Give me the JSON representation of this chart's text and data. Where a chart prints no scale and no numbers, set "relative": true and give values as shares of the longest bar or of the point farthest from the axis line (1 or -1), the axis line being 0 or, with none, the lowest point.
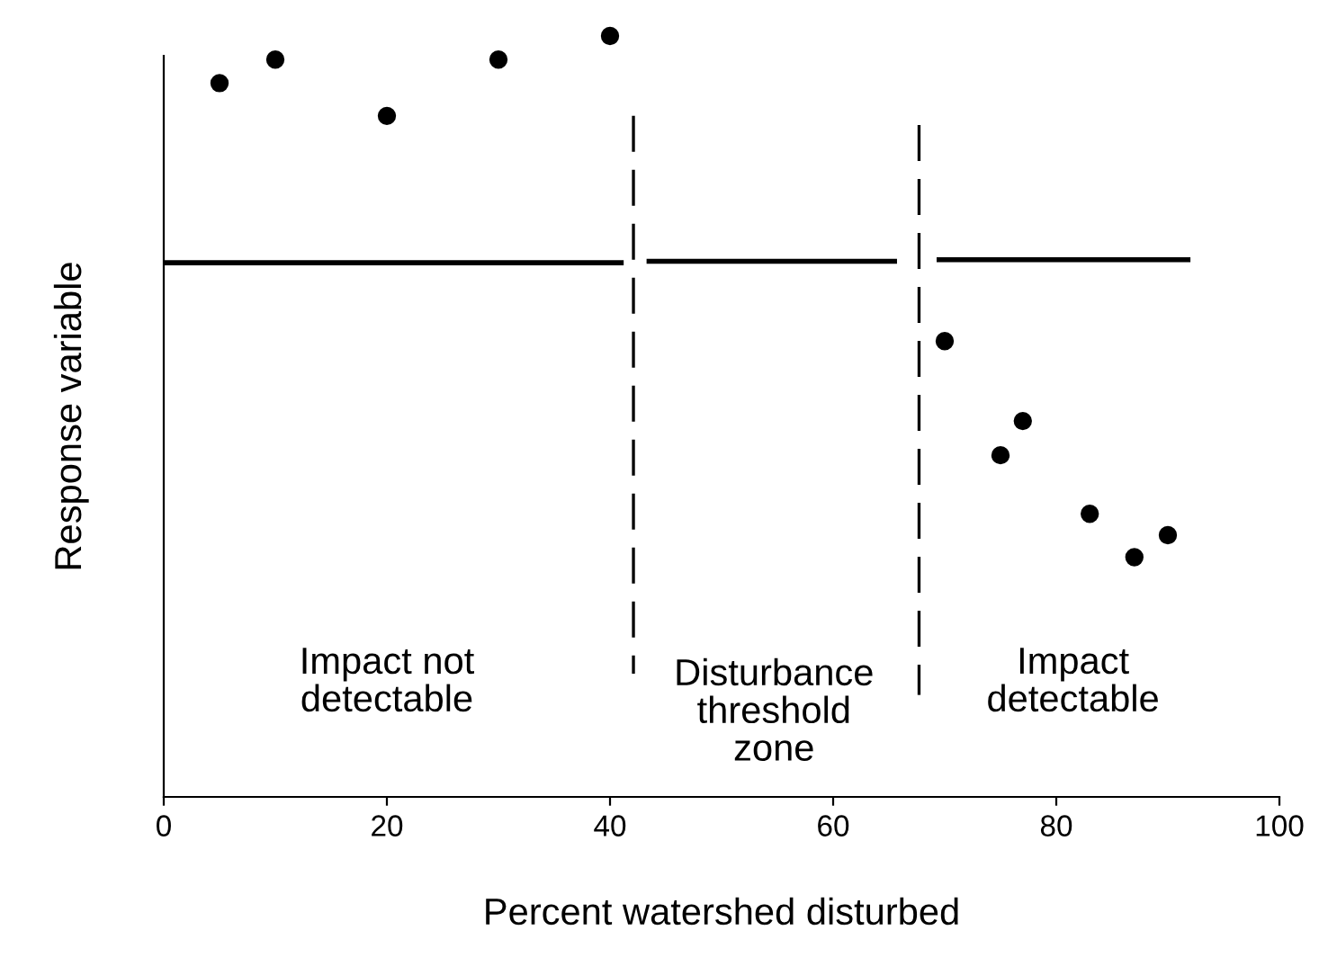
{
  "chart_data": {
    "type": "scatter",
    "relative": true,
    "xlabel": "Percent watershed disturbed",
    "ylabel": "Response variable",
    "xlim": [
      0,
      100
    ],
    "xticks": [
      0,
      20,
      40,
      60,
      80,
      100
    ],
    "grid": false,
    "legend": false,
    "tick_labels": "x",
    "series": [
      {
        "marker": "circle",
        "color": "#000000",
        "x": [
          5,
          10,
          20,
          30,
          40,
          70,
          75,
          77,
          83,
          87,
          90
        ],
        "values": [
          0.938,
          0.969,
          0.895,
          0.969,
          1,
          0.599,
          0.449,
          0.494,
          0.372,
          0.315,
          0.344
        ]
      },
      {
        "type": "line",
        "color": "#000000",
        "line_style": "solid",
        "x": [
          0,
          41
        ],
        "values": [
          0.702,
          0.702
        ]
      },
      {
        "type": "line",
        "color": "#000000",
        "line_style": "solid",
        "x": [
          43.5,
          65.5
        ],
        "values": [
          0.704,
          0.704
        ]
      },
      {
        "type": "line",
        "color": "#000000",
        "line_style": "solid",
        "x": [
          69.5,
          91.8
        ],
        "values": [
          0.706,
          0.706
        ]
      },
      {
        "type": "line",
        "color": "#000000",
        "line_style": "dashed",
        "x": [
          42.1,
          42.1
        ],
        "values": [
          0.895,
          0.162
        ]
      },
      {
        "type": "line",
        "color": "#000000",
        "line_style": "dashed",
        "x": [
          67.7,
          67.7
        ],
        "values": [
          0.883,
          0.134
        ]
      }
    ],
    "annotations": [
      "Impact not\ndetectable",
      "Disturbance\nthreshold\nzone",
      "Impact\ndetectable"
    ]
  }
}
